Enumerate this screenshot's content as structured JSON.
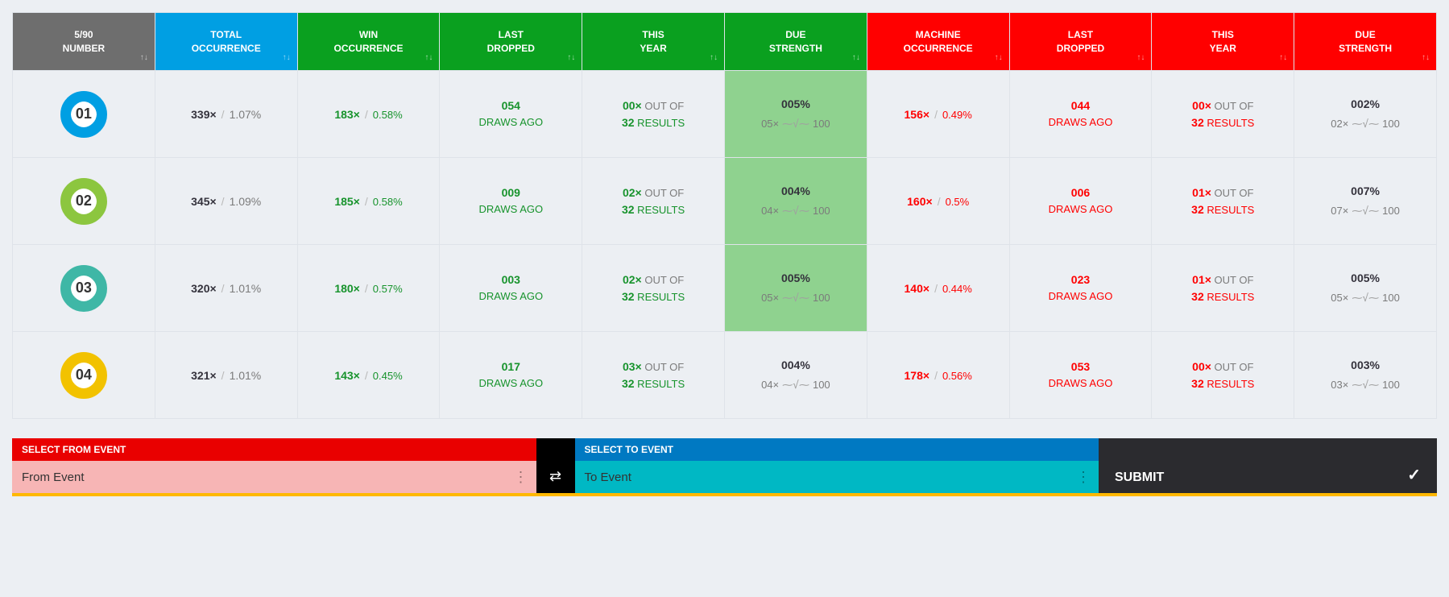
{
  "headers": [
    {
      "l1": "5/90",
      "l2": "NUMBER",
      "cls": "h-gray"
    },
    {
      "l1": "TOTAL",
      "l2": "OCCURRENCE",
      "cls": "h-blue"
    },
    {
      "l1": "WIN",
      "l2": "OCCURRENCE",
      "cls": "h-green"
    },
    {
      "l1": "LAST",
      "l2": "DROPPED",
      "cls": "h-green"
    },
    {
      "l1": "THIS",
      "l2": "YEAR",
      "cls": "h-green"
    },
    {
      "l1": "DUE",
      "l2": "STRENGTH",
      "cls": "h-green"
    },
    {
      "l1": "MACHINE",
      "l2": "OCCURRENCE",
      "cls": "h-red"
    },
    {
      "l1": "LAST",
      "l2": "DROPPED",
      "cls": "h-red"
    },
    {
      "l1": "THIS",
      "l2": "YEAR",
      "cls": "h-red"
    },
    {
      "l1": "DUE",
      "l2": "STRENGTH",
      "cls": "h-red"
    }
  ],
  "labels": {
    "draws_ago": "DRAWS AGO",
    "out_of": " OUT OF",
    "results": " RESULTS",
    "per100": " 100"
  },
  "ball_colors": [
    "#009fe3",
    "#8cc63f",
    "#3fb7a6",
    "#f2c200"
  ],
  "rows": [
    {
      "num": "01",
      "highlight": true,
      "total_x": "339×",
      "total_p": "1.07%",
      "win_x": "183×",
      "win_p": "0.58%",
      "win_drop": "054",
      "win_year_x": "00×",
      "win_year_n": "32",
      "win_due_p": "005%",
      "win_due_x": "05×",
      "mac_x": "156×",
      "mac_p": "0.49%",
      "mac_drop": "044",
      "mac_year_x": "00×",
      "mac_year_n": "32",
      "mac_due_p": "002%",
      "mac_due_x": "02×"
    },
    {
      "num": "02",
      "highlight": true,
      "total_x": "345×",
      "total_p": "1.09%",
      "win_x": "185×",
      "win_p": "0.58%",
      "win_drop": "009",
      "win_year_x": "02×",
      "win_year_n": "32",
      "win_due_p": "004%",
      "win_due_x": "04×",
      "mac_x": "160×",
      "mac_p": "0.5%",
      "mac_drop": "006",
      "mac_year_x": "01×",
      "mac_year_n": "32",
      "mac_due_p": "007%",
      "mac_due_x": "07×"
    },
    {
      "num": "03",
      "highlight": true,
      "total_x": "320×",
      "total_p": "1.01%",
      "win_x": "180×",
      "win_p": "0.57%",
      "win_drop": "003",
      "win_year_x": "02×",
      "win_year_n": "32",
      "win_due_p": "005%",
      "win_due_x": "05×",
      "mac_x": "140×",
      "mac_p": "0.44%",
      "mac_drop": "023",
      "mac_year_x": "01×",
      "mac_year_n": "32",
      "mac_due_p": "005%",
      "mac_due_x": "05×"
    },
    {
      "num": "04",
      "highlight": false,
      "total_x": "321×",
      "total_p": "1.01%",
      "win_x": "143×",
      "win_p": "0.45%",
      "win_drop": "017",
      "win_year_x": "03×",
      "win_year_n": "32",
      "win_due_p": "004%",
      "win_due_x": "04×",
      "mac_x": "178×",
      "mac_p": "0.56%",
      "mac_drop": "053",
      "mac_year_x": "00×",
      "mac_year_n": "32",
      "mac_due_p": "003%",
      "mac_due_x": "03×"
    }
  ],
  "bottom": {
    "from_head": "SELECT FROM EVENT",
    "from_ph": "From Event",
    "to_head": "SELECT TO EVENT",
    "to_ph": "To Event",
    "submit": "SUBMIT"
  }
}
